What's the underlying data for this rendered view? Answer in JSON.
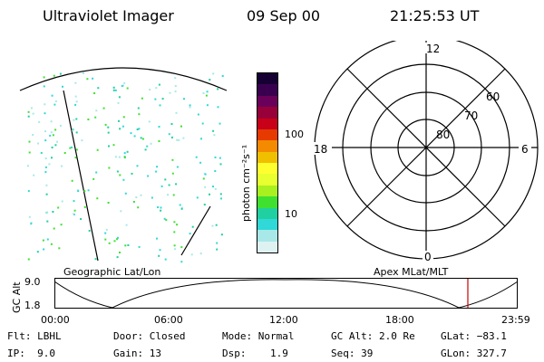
{
  "header": {
    "instrument": "Ultraviolet Imager",
    "date": "09 Sep 00",
    "time": "21:25:53 UT"
  },
  "left_panel": {
    "caption": "Geographic Lat/Lon"
  },
  "right_panel": {
    "caption": "Apex MLat/MLT",
    "mlt_labels": [
      "12",
      "18",
      "6",
      "0"
    ],
    "lat_labels": [
      "60",
      "70",
      "80"
    ]
  },
  "colorbar": {
    "unit": "photon cm⁻²s⁻¹",
    "ticks": [
      "100",
      "10"
    ],
    "colors": [
      "#160033",
      "#3a0050",
      "#6a005a",
      "#98003a",
      "#c80018",
      "#e63a00",
      "#f48a00",
      "#f0c000",
      "#ffff30",
      "#e8ff30",
      "#a8f020",
      "#40e030",
      "#20d0a0",
      "#30d8d8",
      "#a8e8e8",
      "#dff2f2"
    ]
  },
  "timeline": {
    "y_label": "GC Alt",
    "y_ticks": [
      "9.0",
      "1.8"
    ],
    "x_ticks": [
      "00:00",
      "06:00",
      "12:00",
      "18:00",
      "23:59"
    ],
    "marker_color": "#cc0000"
  },
  "info": {
    "col1": [
      "Flt: LBHL",
      "IP:  9.0"
    ],
    "col2": [
      "Door: Closed",
      "Gain: 13"
    ],
    "col3": [
      "Mode: Normal",
      "Dsp:    1.9"
    ],
    "col4": [
      "GC Alt: 2.0 Re",
      "Seq: 39"
    ],
    "col5": [
      "GLat: −83.1",
      "GLon: 327.7"
    ]
  }
}
